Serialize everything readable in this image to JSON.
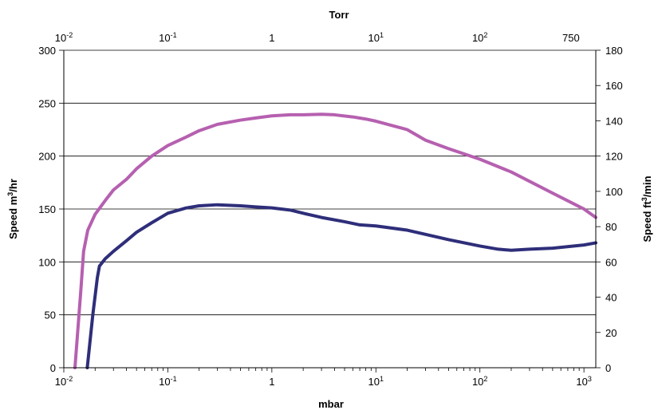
{
  "chart_data": {
    "type": "line",
    "xaxis_bottom": {
      "label": "mbar",
      "scale": "log",
      "range": [
        0.01,
        1300
      ],
      "ticks": [
        {
          "value": 0.01,
          "base": "10",
          "sup": "-2"
        },
        {
          "value": 0.1,
          "base": "10",
          "sup": "-1"
        },
        {
          "value": 1,
          "base": "1",
          "sup": ""
        },
        {
          "value": 10,
          "base": "10",
          "sup": "1"
        },
        {
          "value": 100,
          "base": "10",
          "sup": "2"
        },
        {
          "value": 1000,
          "base": "10",
          "sup": "3"
        }
      ]
    },
    "xaxis_top": {
      "label": "Torr",
      "ticks": [
        {
          "value": 0.01,
          "base": "10",
          "sup": "-2"
        },
        {
          "value": 0.1,
          "base": "10",
          "sup": "-1"
        },
        {
          "value": 1,
          "base": "1",
          "sup": ""
        },
        {
          "value": 10,
          "base": "10",
          "sup": "1"
        },
        {
          "value": 100,
          "base": "10",
          "sup": "2"
        },
        {
          "value": 750,
          "base": "750",
          "sup": ""
        }
      ]
    },
    "yaxis_left": {
      "label_main": "Speed m",
      "label_sup": "3",
      "label_tail": "/hr",
      "range": [
        0,
        300
      ],
      "ticks": [
        "0",
        "50",
        "100",
        "150",
        "200",
        "250",
        "300"
      ]
    },
    "yaxis_right": {
      "label_main": "Speed ft",
      "label_sup": "3",
      "label_tail": "/min",
      "range": [
        0,
        180
      ],
      "ticks": [
        "0",
        "20",
        "40",
        "60",
        "80",
        "100",
        "120",
        "140",
        "160",
        "180"
      ]
    },
    "grid": {
      "horizontal": true,
      "values": [
        50,
        100,
        150,
        200,
        250
      ]
    },
    "series": [
      {
        "color": "#b660b0",
        "x": [
          0.0128,
          0.0145,
          0.0155,
          0.017,
          0.02,
          0.025,
          0.03,
          0.04,
          0.05,
          0.07,
          0.1,
          0.15,
          0.2,
          0.3,
          0.5,
          0.7,
          1,
          1.5,
          2,
          3,
          4,
          6,
          8,
          10,
          20,
          30,
          50,
          100,
          200,
          500,
          1000,
          1300
        ],
        "y": [
          0,
          70,
          110,
          130,
          145,
          158,
          168,
          178,
          188,
          200,
          210,
          218,
          224,
          230,
          234,
          236,
          238,
          239,
          239,
          239.5,
          239,
          237,
          235,
          233,
          225,
          215,
          207,
          197,
          185,
          165,
          150,
          142
        ]
      },
      {
        "color": "#2e2e7a",
        "x": [
          0.0168,
          0.019,
          0.021,
          0.022,
          0.025,
          0.03,
          0.04,
          0.05,
          0.07,
          0.1,
          0.15,
          0.2,
          0.3,
          0.5,
          0.7,
          1,
          1.5,
          2,
          3,
          5,
          7,
          10,
          20,
          30,
          50,
          100,
          150,
          200,
          300,
          500,
          1000,
          1300
        ],
        "y": [
          0,
          50,
          85,
          96,
          103,
          110,
          120,
          128,
          137,
          146,
          151,
          153,
          154,
          153,
          152,
          151,
          149,
          146,
          142,
          138,
          135,
          134,
          130,
          126,
          121,
          115,
          112,
          111,
          112,
          113,
          116,
          118
        ]
      }
    ]
  }
}
